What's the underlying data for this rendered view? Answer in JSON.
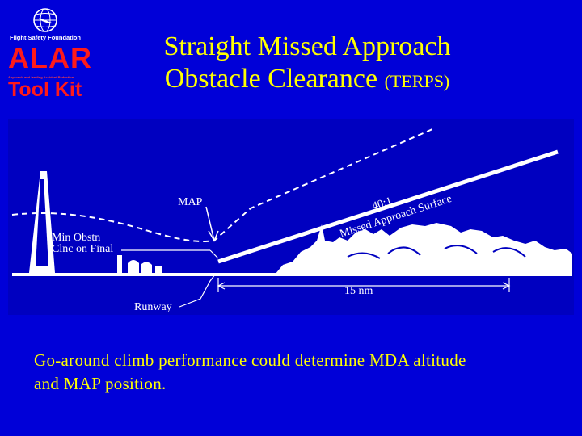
{
  "logo": {
    "org": "Flight Safety Foundation",
    "alar": "ALAR",
    "tagline": "Approach-and-landing Accident Reduction",
    "toolkit": "Tool Kit",
    "icon": "globe-icon"
  },
  "title": {
    "line1": "Straight Missed Approach",
    "line2": "Obstacle Clearance",
    "line2_suffix": "(TERPS)"
  },
  "diagram": {
    "map_label": "MAP",
    "ratio_label": "40:1",
    "surface_label": "Missed Approach Surface",
    "obstacle_label_1": "Min Obstn",
    "obstacle_label_2": "Clnc on Final",
    "distance_label": "15 nm",
    "runway_label": "Runway"
  },
  "caption": {
    "line1": "Go-around climb performance could determine MDA altitude",
    "line2": "and MAP position."
  },
  "colors": {
    "background": "#0000d8",
    "title": "#ffff00",
    "logo": "#ff1a1a",
    "diagram": "#ffffff"
  }
}
